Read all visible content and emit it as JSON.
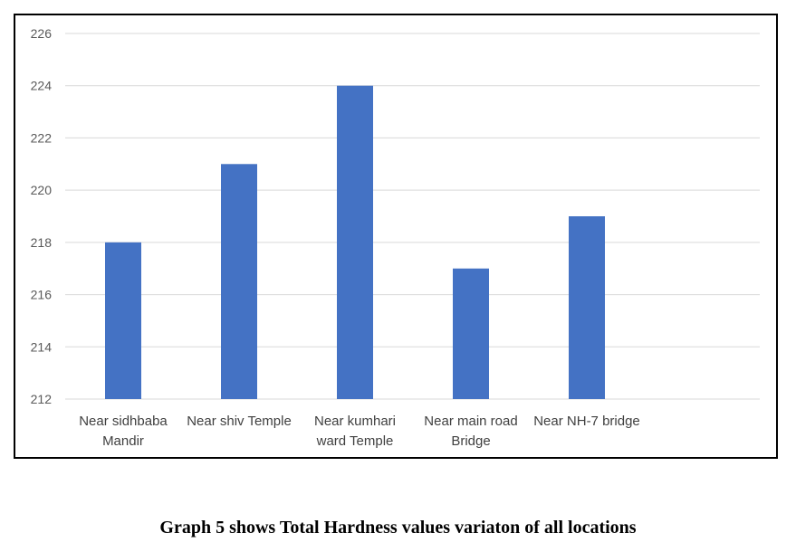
{
  "caption": "Graph 5 shows Total Hardness values variaton of all locations",
  "chart_data": {
    "type": "bar",
    "categories": [
      [
        "Near sidhbaba",
        "Mandir"
      ],
      [
        "Near shiv Temple"
      ],
      [
        "Near kumhari",
        "ward Temple"
      ],
      [
        "Near main road",
        "Bridge"
      ],
      [
        "Near NH-7 bridge"
      ]
    ],
    "values": [
      218,
      221,
      224,
      217,
      219
    ],
    "ylim": [
      212,
      226
    ],
    "yticks": [
      212,
      214,
      216,
      218,
      220,
      222,
      224,
      226
    ],
    "title": "",
    "xlabel": "",
    "ylabel": "",
    "grid": true,
    "legend": "none",
    "colors": {
      "bar": "#4472C4",
      "grid": "#D9D9D9",
      "tick_text": "#595959"
    }
  }
}
